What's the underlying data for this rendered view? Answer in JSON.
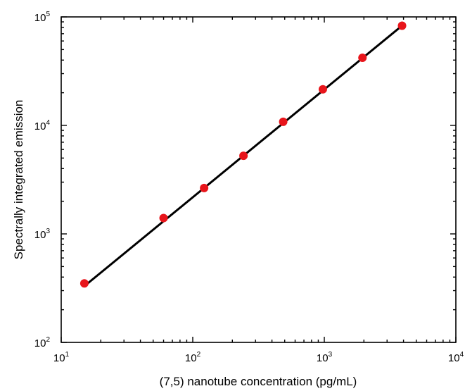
{
  "chart_data": {
    "type": "scatter",
    "xlabel": "(7,5) nanotube concentration (pg/mL)",
    "ylabel": "Spectrally integrated emission",
    "x_scale": "log",
    "y_scale": "log",
    "xlim": [
      10,
      10000
    ],
    "ylim": [
      100,
      100000
    ],
    "x_ticks": [
      {
        "base": "10",
        "exp": "1",
        "value": 10
      },
      {
        "base": "10",
        "exp": "2",
        "value": 100
      },
      {
        "base": "10",
        "exp": "3",
        "value": 1000
      },
      {
        "base": "10",
        "exp": "4",
        "value": 10000
      }
    ],
    "y_ticks": [
      {
        "base": "10",
        "exp": "2",
        "value": 100
      },
      {
        "base": "10",
        "exp": "3",
        "value": 1000
      },
      {
        "base": "10",
        "exp": "4",
        "value": 10000
      },
      {
        "base": "10",
        "exp": "5",
        "value": 100000
      }
    ],
    "grid": false,
    "series": [
      {
        "type": "scatter",
        "color": "#e8151b",
        "points": [
          {
            "x": 15,
            "y": 350
          },
          {
            "x": 60,
            "y": 1400
          },
          {
            "x": 122,
            "y": 2650
          },
          {
            "x": 243,
            "y": 5250
          },
          {
            "x": 487,
            "y": 10800
          },
          {
            "x": 975,
            "y": 21500
          },
          {
            "x": 1950,
            "y": 42000
          },
          {
            "x": 3900,
            "y": 83000
          }
        ]
      },
      {
        "type": "line",
        "color": "#000000",
        "points": [
          {
            "x": 15,
            "y": 330
          },
          {
            "x": 3900,
            "y": 83000
          }
        ]
      }
    ]
  }
}
